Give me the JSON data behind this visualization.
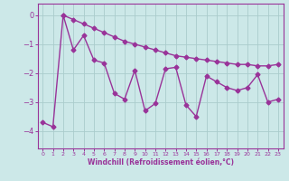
{
  "xlabel": "Windchill (Refroidissement éolien,°C)",
  "bg_color": "#cce8e8",
  "line_color": "#993399",
  "grid_color": "#aacccc",
  "xlim": [
    -0.5,
    23.5
  ],
  "ylim": [
    -4.6,
    0.4
  ],
  "xticks": [
    0,
    1,
    2,
    3,
    4,
    5,
    6,
    7,
    8,
    9,
    10,
    11,
    12,
    13,
    14,
    15,
    16,
    17,
    18,
    19,
    20,
    21,
    22,
    23
  ],
  "yticks": [
    0,
    -1,
    -2,
    -3,
    -4
  ],
  "series1_x": [
    2,
    3,
    4,
    5,
    6,
    7,
    8,
    9,
    10,
    11,
    12,
    13,
    14,
    15,
    16,
    17,
    18,
    19,
    20,
    21,
    22,
    23
  ],
  "series1_y": [
    0.0,
    -0.15,
    -0.3,
    -0.45,
    -0.6,
    -0.75,
    -0.9,
    -1.0,
    -1.1,
    -1.2,
    -1.3,
    -1.4,
    -1.45,
    -1.5,
    -1.55,
    -1.6,
    -1.65,
    -1.7,
    -1.7,
    -1.75,
    -1.75,
    -1.7
  ],
  "series2_x": [
    0,
    1,
    2,
    3,
    4,
    5,
    6,
    7,
    8,
    9,
    10,
    11,
    12,
    13,
    14,
    15,
    16,
    17,
    18,
    19,
    20,
    21,
    22,
    23
  ],
  "series2_y": [
    -3.7,
    -3.85,
    0.0,
    -1.2,
    -0.7,
    -1.55,
    -1.65,
    -2.7,
    -2.9,
    -1.9,
    -3.3,
    -3.05,
    -1.85,
    -1.8,
    -3.1,
    -3.5,
    -2.1,
    -2.3,
    -2.5,
    -2.6,
    -2.5,
    -2.05,
    -3.0,
    -2.9
  ],
  "marker": "D",
  "markersize": 2.5,
  "linewidth": 1.0
}
